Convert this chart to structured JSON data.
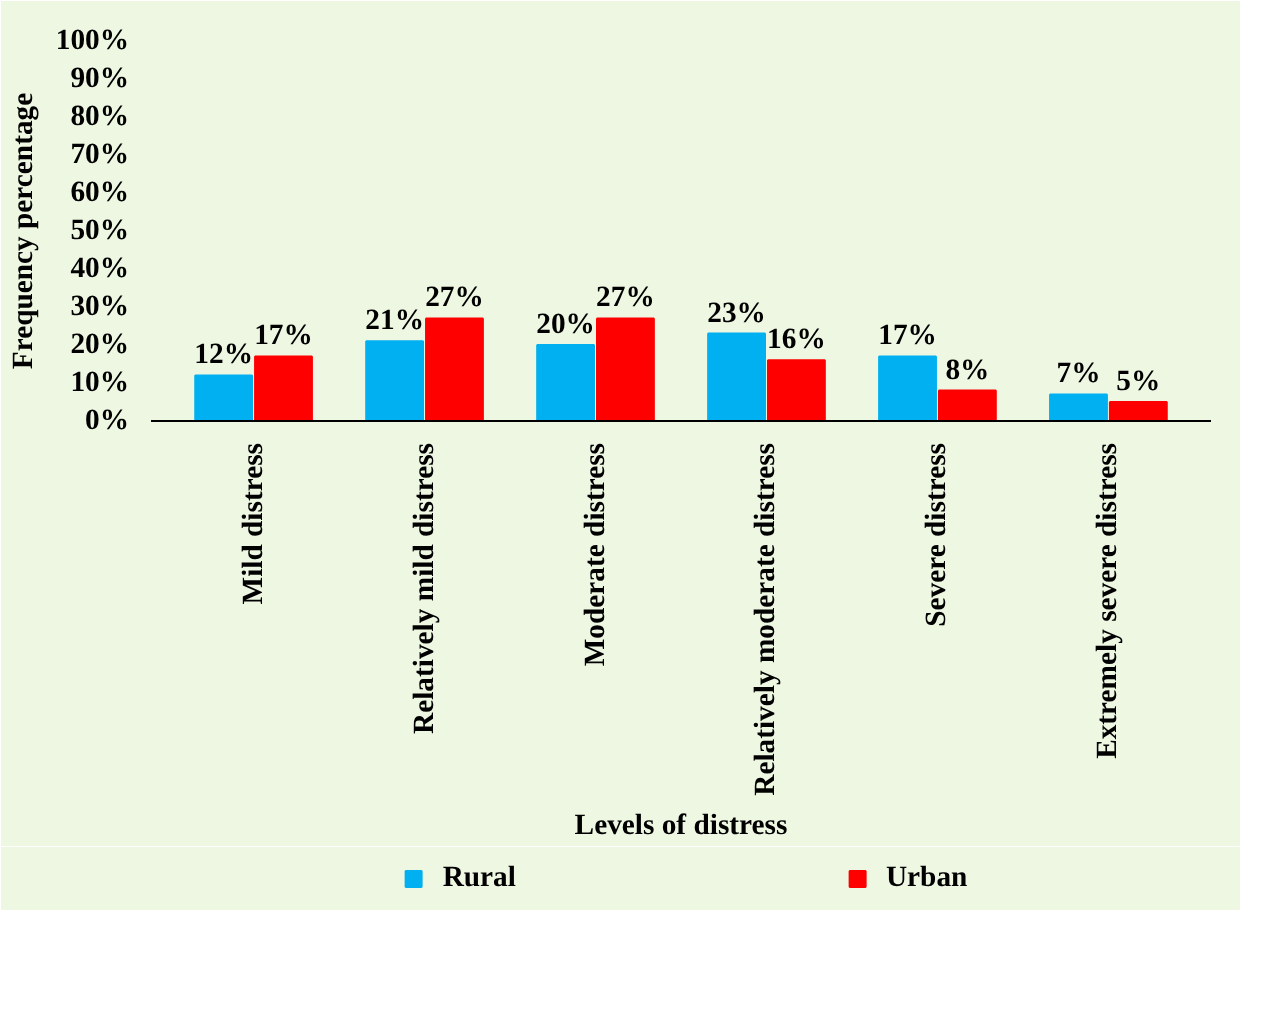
{
  "chart_data": {
    "type": "bar",
    "xlabel": "Levels of distress",
    "ylabel": "Frequency percentage",
    "categories": [
      "Mild distress",
      "Relatively mild distress",
      "Moderate distress",
      "Relatively moderate distress",
      "Severe distress",
      "Extremely severe distress"
    ],
    "series": [
      {
        "name": "Rural",
        "color": "#00b0f0",
        "values": [
          12,
          21,
          20,
          23,
          17,
          7
        ],
        "value_labels": [
          "12%",
          "21%",
          "20%",
          "23%",
          "17%",
          "7%"
        ]
      },
      {
        "name": "Urban",
        "color": "#ff0000",
        "values": [
          17,
          27,
          27,
          16,
          8,
          5
        ],
        "value_labels": [
          "17%",
          "27%",
          "27%",
          "16%",
          "8%",
          "5%"
        ]
      }
    ],
    "ylim": [
      0,
      100
    ],
    "yticks": [
      {
        "value": 0,
        "label": "0%"
      },
      {
        "value": 10,
        "label": "10%"
      },
      {
        "value": 20,
        "label": "20%"
      },
      {
        "value": 30,
        "label": "30%"
      },
      {
        "value": 40,
        "label": "40%"
      },
      {
        "value": 50,
        "label": "50%"
      },
      {
        "value": 60,
        "label": "60%"
      },
      {
        "value": 70,
        "label": "70%"
      },
      {
        "value": 80,
        "label": "80%"
      },
      {
        "value": 90,
        "label": "90%"
      },
      {
        "value": 100,
        "label": "100%"
      }
    ],
    "grid": false,
    "legend": "bottom"
  }
}
